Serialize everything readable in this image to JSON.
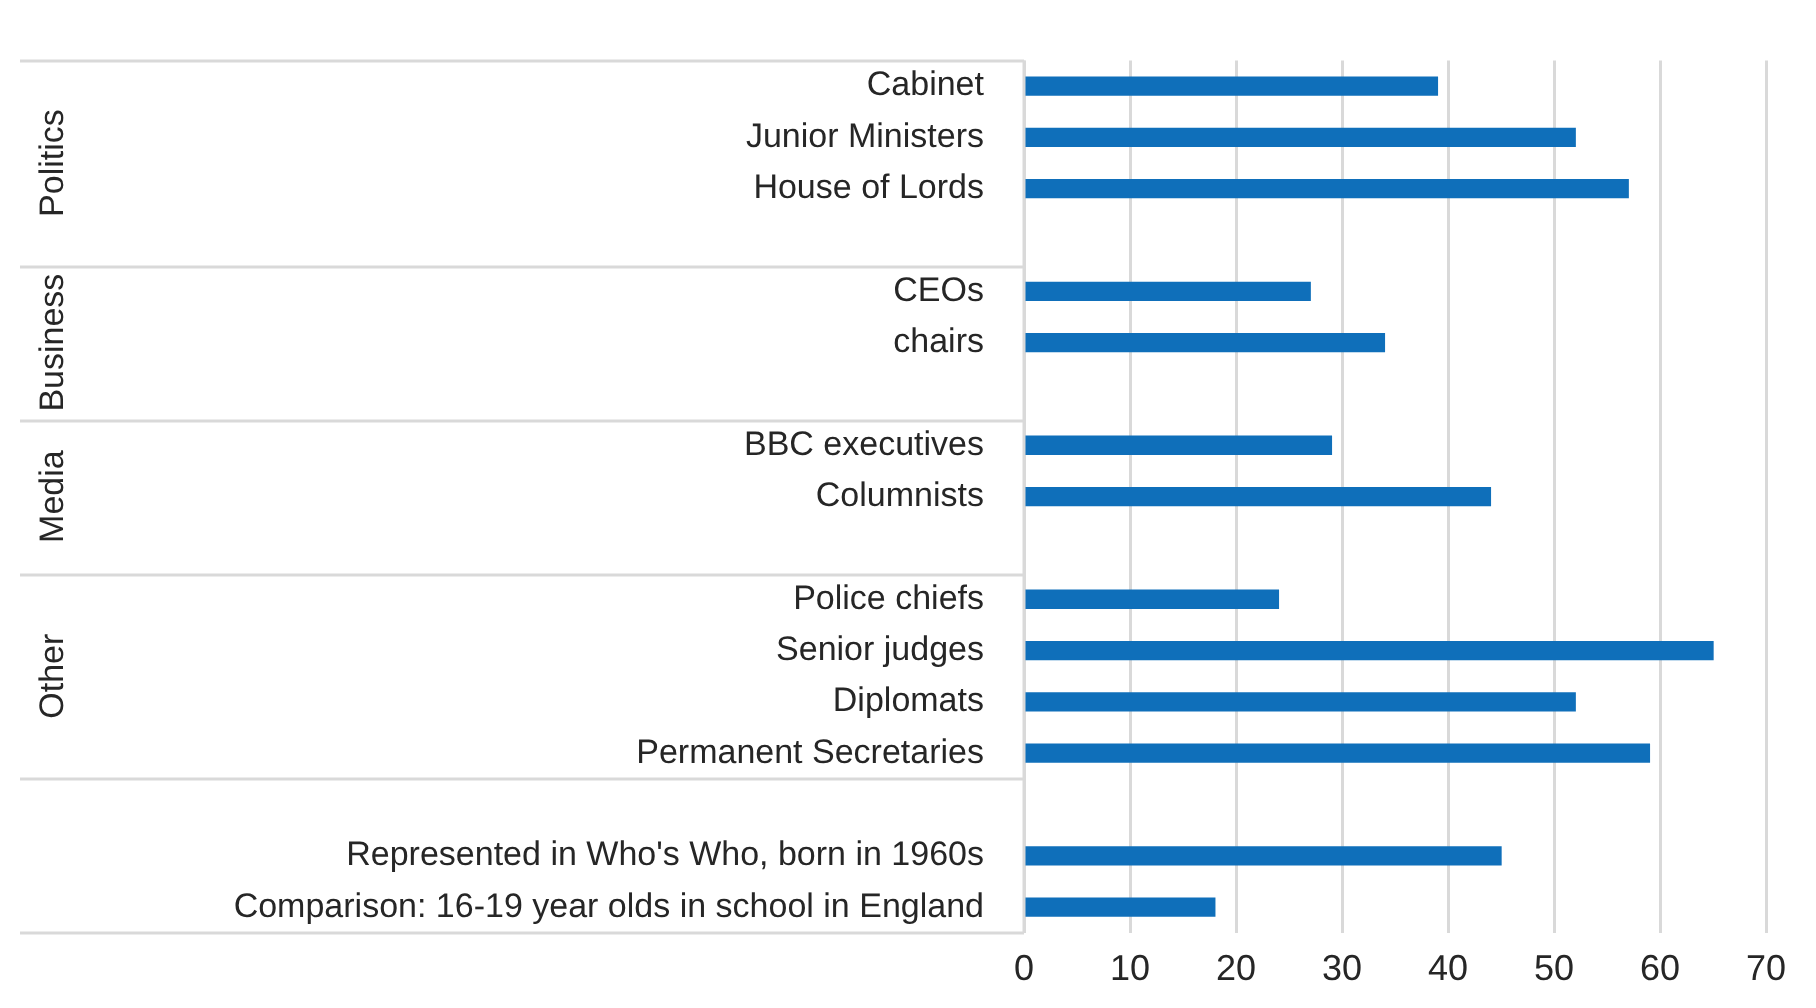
{
  "chart_data": {
    "type": "bar",
    "orientation": "horizontal",
    "categories": [
      "Cabinet",
      "Junior Ministers",
      "House of Lords",
      null,
      "CEOs",
      "chairs",
      null,
      "BBC executives",
      "Columnists",
      null,
      "Police chiefs",
      "Senior judges",
      "Diplomats",
      "Permanent Secretaries",
      null,
      "Represented in Who's Who, born in 1960s",
      "Comparison: 16-19 year olds in school in England"
    ],
    "values": [
      39,
      52,
      57,
      null,
      27,
      34,
      null,
      29,
      44,
      null,
      24,
      65,
      52,
      59,
      null,
      45,
      18
    ],
    "color": "#0f6fba",
    "xlim": [
      0,
      70
    ],
    "xticks": [
      0,
      10,
      20,
      30,
      40,
      50,
      60,
      70
    ],
    "grid": "x",
    "legend": false,
    "annotations": [
      "Politics",
      "Business",
      "Media",
      "Other"
    ]
  }
}
